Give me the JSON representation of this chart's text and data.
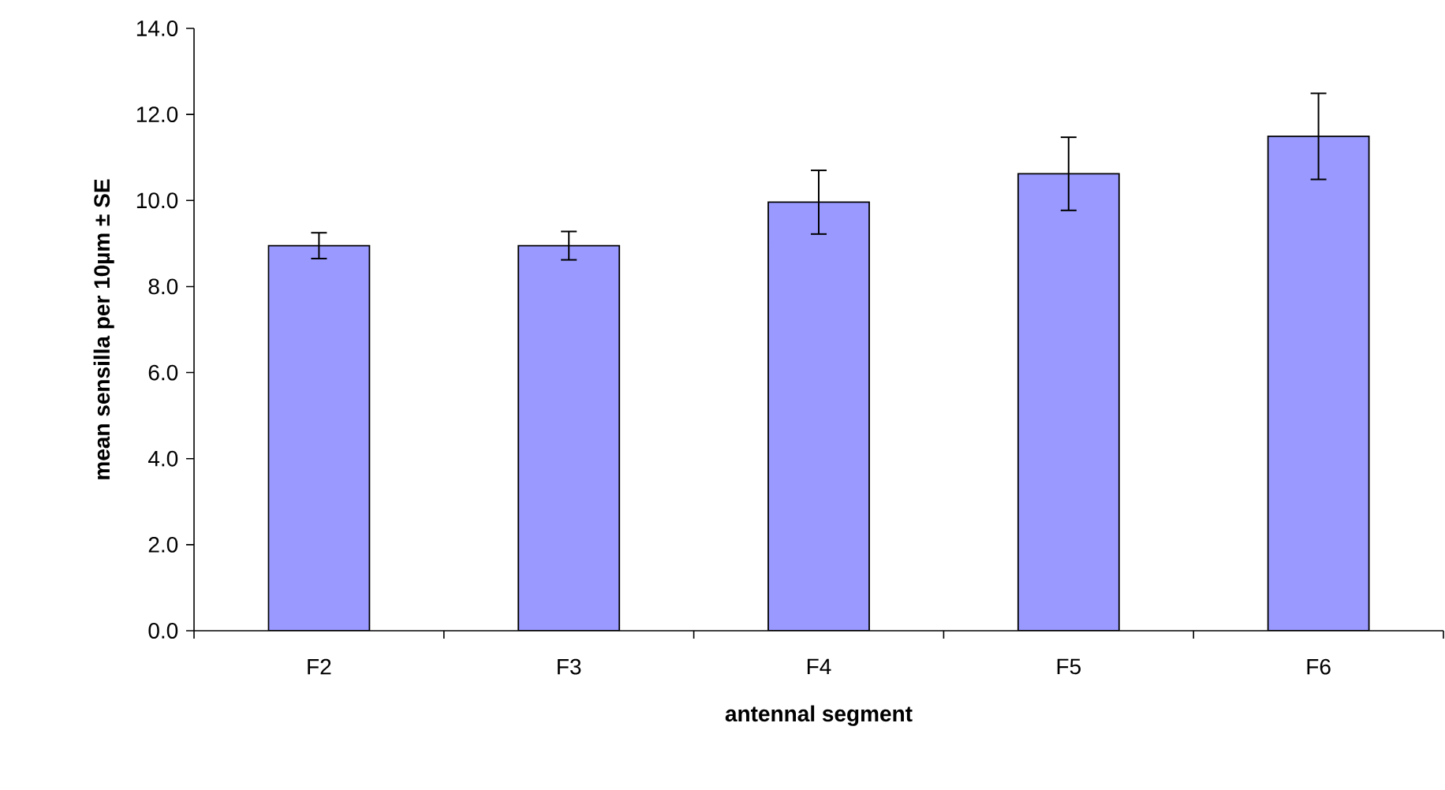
{
  "chart_data": {
    "type": "bar",
    "xlabel": "antennal segment",
    "ylabel": "mean sensilla per 10µm ± SE",
    "categories": [
      "F2",
      "F3",
      "F4",
      "F5",
      "F6"
    ],
    "values": [
      8.95,
      8.95,
      9.96,
      10.62,
      11.49
    ],
    "errors": [
      0.3,
      0.33,
      0.74,
      0.85,
      1.0
    ],
    "color": "#9999ff",
    "ylim": [
      0,
      14
    ],
    "yticks": [
      {
        "value": 0,
        "label": "0.0"
      },
      {
        "value": 2,
        "label": "2.0"
      },
      {
        "value": 4,
        "label": "4.0"
      },
      {
        "value": 6,
        "label": "6.0"
      },
      {
        "value": 8,
        "label": "8.0"
      },
      {
        "value": 10,
        "label": "10.0"
      },
      {
        "value": 12,
        "label": "12.0"
      },
      {
        "value": 14,
        "label": "14.0"
      }
    ],
    "grid": false
  }
}
